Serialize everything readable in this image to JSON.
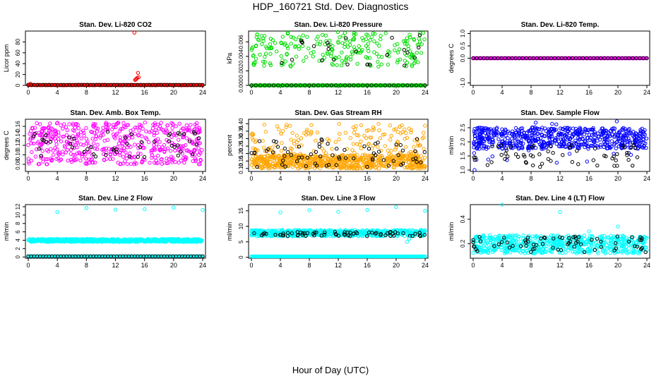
{
  "figure": {
    "title": "HDP_160721  Std. Dev. Diagnostics",
    "xlabel": "Hour of Day (UTC)"
  },
  "colors": {
    "red": "#ff0000",
    "green": "#00dd00",
    "magenta": "#ff00ff",
    "orange": "#ffa500",
    "blue": "#0000ff",
    "cyan": "#00ffff",
    "black": "#000000"
  },
  "chart_data": [
    {
      "type": "scatter",
      "title": "Stan. Dev. Li-820 CO2",
      "ylabel": "Licor ppm",
      "xlim": [
        0,
        24
      ],
      "ylim": [
        0,
        100
      ],
      "xticks": [
        "0",
        "4",
        "8",
        "12",
        "16",
        "20",
        "24"
      ],
      "yticks": [
        {
          "v": 0,
          "label": "0"
        },
        {
          "v": 20,
          "label": "20"
        },
        {
          "v": 40,
          "label": "40"
        },
        {
          "v": 60,
          "label": "60"
        },
        {
          "v": 80,
          "label": "80"
        }
      ],
      "series": [
        {
          "name": "main",
          "color": "red",
          "pattern": {
            "kind": "base",
            "base": 0.6,
            "noise": 0.6,
            "n": 300
          }
        },
        {
          "name": "black",
          "color": "black",
          "pattern": {
            "kind": "base",
            "base": 0.8,
            "noise": 0.4,
            "n": 60
          }
        },
        {
          "name": "outliers",
          "color": "red",
          "points": [
            [
              14.6,
              97
            ],
            [
              14.7,
              10
            ],
            [
              14.9,
              12
            ],
            [
              15.0,
              14
            ],
            [
              15.1,
              23
            ],
            [
              15.2,
              15
            ],
            [
              14.8,
              11
            ],
            [
              0.3,
              3
            ]
          ]
        }
      ]
    },
    {
      "type": "scatter",
      "title": "Stan. Dev. Li-820 Pressure",
      "ylabel": "kPa",
      "xlim": [
        0,
        24
      ],
      "ylim": [
        0,
        0.0075
      ],
      "xticks": [
        "0",
        "4",
        "8",
        "12",
        "16",
        "20",
        "24"
      ],
      "yticks": [
        {
          "v": 0,
          "label": "0.000"
        },
        {
          "v": 0.002,
          "label": "0.002"
        },
        {
          "v": 0.004,
          "label": "0.004"
        },
        {
          "v": 0.006,
          "label": "0.006"
        }
      ],
      "series": [
        {
          "name": "zero-line",
          "color": "green",
          "pattern": {
            "kind": "base",
            "base": 0,
            "noise": 0,
            "n": 220
          }
        },
        {
          "name": "scatter",
          "color": "green",
          "pattern": {
            "kind": "band",
            "lo": 0.0026,
            "hi": 0.0074,
            "n": 240
          }
        },
        {
          "name": "black",
          "color": "black",
          "pattern": {
            "kind": "band",
            "lo": 0.0025,
            "hi": 0.0072,
            "n": 24
          }
        },
        {
          "name": "black-zero",
          "color": "black",
          "pattern": {
            "kind": "base",
            "base": 0,
            "noise": 0,
            "n": 40
          }
        }
      ]
    },
    {
      "type": "scatter",
      "title": "Stan. Dev. Li-820 Temp.",
      "ylabel": "degrees C",
      "xlim": [
        0,
        24
      ],
      "ylim": [
        -1.1,
        1.1
      ],
      "xticks": [
        "0",
        "4",
        "8",
        "12",
        "16",
        "20",
        "24"
      ],
      "yticks": [
        {
          "v": -1,
          "label": "-1.0"
        },
        {
          "v": 0,
          "label": "0.0"
        },
        {
          "v": 0.5,
          "label": "0.5"
        },
        {
          "v": 1,
          "label": "1.0"
        }
      ],
      "series": [
        {
          "name": "main",
          "color": "magenta",
          "pattern": {
            "kind": "base",
            "base": 0,
            "noise": 0,
            "n": 260
          }
        },
        {
          "name": "black",
          "color": "black",
          "pattern": {
            "kind": "base",
            "base": 0,
            "noise": 0,
            "n": 50
          }
        }
      ]
    },
    {
      "type": "scatter",
      "title": "Stan. Dev. Amb. Box Temp.",
      "ylabel": "degrees C",
      "xlim": [
        0,
        24
      ],
      "ylim": [
        0.065,
        0.175
      ],
      "xticks": [
        "0",
        "4",
        "8",
        "12",
        "16",
        "20",
        "24"
      ],
      "yticks": [
        {
          "v": 0.08,
          "label": "0.08"
        },
        {
          "v": 0.1,
          "label": "0.10"
        },
        {
          "v": 0.12,
          "label": "0.12"
        },
        {
          "v": 0.14,
          "label": "0.14"
        },
        {
          "v": 0.16,
          "label": "0.16"
        }
      ],
      "series": [
        {
          "name": "main",
          "color": "magenta",
          "pattern": {
            "kind": "band",
            "lo": 0.08,
            "hi": 0.168,
            "n": 520
          }
        },
        {
          "name": "black",
          "color": "black",
          "pattern": {
            "kind": "band",
            "lo": 0.09,
            "hi": 0.15,
            "n": 50
          }
        }
      ]
    },
    {
      "type": "scatter",
      "title": "Stan. Dev. Gas Stream RH",
      "ylabel": "percent",
      "xlim": [
        0,
        24
      ],
      "ylim": [
        0.08,
        0.43
      ],
      "xticks": [
        "0",
        "4",
        "8",
        "12",
        "16",
        "20",
        "24"
      ],
      "yticks": [
        {
          "v": 0.1,
          "label": "0.10"
        },
        {
          "v": 0.15,
          "label": "0.15"
        },
        {
          "v": 0.2,
          "label": "0.20"
        },
        {
          "v": 0.25,
          "label": "0.25"
        },
        {
          "v": 0.3,
          "label": "0.30"
        },
        {
          "v": 0.35,
          "label": "0.35"
        },
        {
          "v": 0.4,
          "label": "0.40"
        }
      ],
      "series": [
        {
          "name": "dense",
          "color": "orange",
          "pattern": {
            "kind": "band",
            "lo": 0.1,
            "hi": 0.19,
            "n": 650
          }
        },
        {
          "name": "sparse",
          "color": "orange",
          "pattern": {
            "kind": "band",
            "lo": 0.19,
            "hi": 0.4,
            "n": 160
          }
        },
        {
          "name": "black",
          "color": "black",
          "pattern": {
            "kind": "band",
            "lo": 0.11,
            "hi": 0.3,
            "n": 70
          }
        }
      ]
    },
    {
      "type": "scatter",
      "title": "Stan. Dev. Sample Flow",
      "ylabel": "ml/min",
      "xlim": [
        0,
        24
      ],
      "ylim": [
        0.95,
        2.8
      ],
      "xticks": [
        "0",
        "4",
        "8",
        "12",
        "16",
        "20",
        "24"
      ],
      "yticks": [
        {
          "v": 1.0,
          "label": "1.0"
        },
        {
          "v": 1.5,
          "label": "1.5"
        },
        {
          "v": 2.0,
          "label": "2.0"
        },
        {
          "v": 2.5,
          "label": "2.5"
        }
      ],
      "series": [
        {
          "name": "main",
          "color": "blue",
          "pattern": {
            "kind": "band",
            "lo": 1.75,
            "hi": 2.5,
            "n": 600
          }
        },
        {
          "name": "sparse",
          "color": "blue",
          "pattern": {
            "kind": "band",
            "lo": 1.2,
            "hi": 2.75,
            "n": 40
          }
        },
        {
          "name": "black",
          "color": "black",
          "pattern": {
            "kind": "band",
            "lo": 1.1,
            "hi": 1.9,
            "n": 60
          }
        },
        {
          "name": "outlier",
          "color": "blue",
          "points": [
            [
              0.2,
              1.0
            ]
          ]
        }
      ]
    },
    {
      "type": "scatter",
      "title": "Stan. Dev. Line 2 Flow",
      "ylabel": "ml/min",
      "xlim": [
        0,
        24
      ],
      "ylim": [
        -0.3,
        12.5
      ],
      "xticks": [
        "0",
        "4",
        "8",
        "12",
        "16",
        "20",
        "24"
      ],
      "yticks": [
        {
          "v": 0,
          "label": "0"
        },
        {
          "v": 2,
          "label": "2"
        },
        {
          "v": 4,
          "label": "4"
        },
        {
          "v": 6,
          "label": "6"
        },
        {
          "v": 8,
          "label": "8"
        },
        {
          "v": 10,
          "label": "10"
        },
        {
          "v": 12,
          "label": "12"
        }
      ],
      "series": [
        {
          "name": "band",
          "color": "cyan",
          "pattern": {
            "kind": "band",
            "lo": 3.6,
            "hi": 4.3,
            "n": 700
          }
        },
        {
          "name": "zero-line",
          "color": "cyan",
          "pattern": {
            "kind": "base",
            "base": 0.15,
            "noise": 0,
            "n": 200
          }
        },
        {
          "name": "black",
          "color": "black",
          "pattern": {
            "kind": "base",
            "base": 0.15,
            "noise": 0,
            "n": 60
          }
        },
        {
          "name": "outliers",
          "color": "cyan",
          "points": [
            [
              4,
              10.7
            ],
            [
              8,
              11.7
            ],
            [
              12,
              11.3
            ],
            [
              16,
              11.4
            ],
            [
              20,
              11.8
            ],
            [
              24,
              11.2
            ]
          ]
        }
      ]
    },
    {
      "type": "scatter",
      "title": "Stan. Dev. Line 3 Flow",
      "ylabel": "ml/min",
      "xlim": [
        0,
        24
      ],
      "ylim": [
        -0.3,
        17
      ],
      "xticks": [
        "0",
        "4",
        "8",
        "12",
        "16",
        "20",
        "24"
      ],
      "yticks": [
        {
          "v": 0,
          "label": "0"
        },
        {
          "v": 5,
          "label": "5"
        },
        {
          "v": 10,
          "label": "10"
        },
        {
          "v": 15,
          "label": "15"
        }
      ],
      "series": [
        {
          "name": "band",
          "color": "cyan",
          "pattern": {
            "kind": "band",
            "lo": 6.8,
            "hi": 8.8,
            "n": 600
          }
        },
        {
          "name": "zero-line",
          "color": "cyan",
          "pattern": {
            "kind": "base",
            "base": 0.3,
            "noise": 0,
            "n": 200
          }
        },
        {
          "name": "black",
          "color": "black",
          "pattern": {
            "kind": "band",
            "lo": 6.8,
            "hi": 8.2,
            "n": 70
          }
        },
        {
          "name": "outliers",
          "color": "cyan",
          "points": [
            [
              4,
              14.5
            ],
            [
              8,
              15.2
            ],
            [
              12,
              14.7
            ],
            [
              16,
              15.3
            ],
            [
              20,
              16.2
            ],
            [
              24,
              15.0
            ],
            [
              21.5,
              5
            ],
            [
              21.8,
              6
            ]
          ]
        }
      ]
    },
    {
      "type": "scatter",
      "title": "Stan. Dev. Line 4 (LT) Flow",
      "ylabel": "ml/min",
      "xlim": [
        0,
        24
      ],
      "ylim": [
        0.08,
        0.52
      ],
      "xticks": [
        "0",
        "4",
        "8",
        "12",
        "16",
        "20",
        "24"
      ],
      "yticks": [
        {
          "v": 0.2,
          "label": "0.2"
        },
        {
          "v": 0.4,
          "label": "0.4"
        }
      ],
      "series": [
        {
          "name": "band",
          "color": "cyan",
          "pattern": {
            "kind": "band",
            "lo": 0.12,
            "hi": 0.27,
            "n": 650
          }
        },
        {
          "name": "black",
          "color": "black",
          "pattern": {
            "kind": "band",
            "lo": 0.13,
            "hi": 0.26,
            "n": 70
          }
        },
        {
          "name": "outliers",
          "color": "cyan",
          "points": [
            [
              4,
              0.52
            ],
            [
              12,
              0.46
            ],
            [
              20,
              0.34
            ],
            [
              16,
              0.3
            ]
          ]
        }
      ]
    }
  ]
}
